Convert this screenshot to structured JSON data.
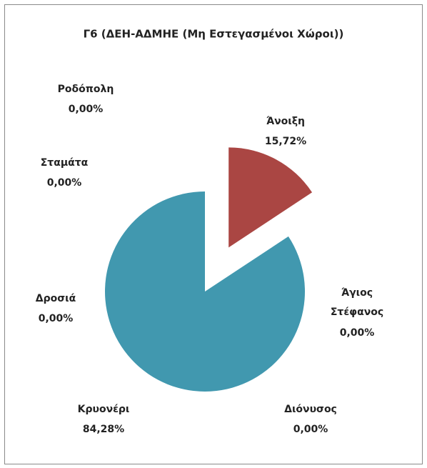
{
  "chart_data": {
    "type": "pie",
    "title": "Γ6 (ΔΕΗ-ΑΔΜΗΕ (Μη Εστεγασμένοι Χώροι))",
    "categories": [
      "Ροδόπολη",
      "Άνοιξη",
      "Άγιος Στέφανος",
      "Διόνυσος",
      "Κρυονέρι",
      "Δροσιά",
      "Σταμάτα"
    ],
    "values": [
      0,
      15.72,
      0,
      0,
      84.28,
      0,
      0
    ],
    "value_labels": [
      "0,00%",
      "15,72%",
      "0,00%",
      "0,00%",
      "84,28%",
      "0,00%",
      "0,00%"
    ],
    "colors": [
      "#4572a7",
      "#aa4643",
      "#89a54e",
      "#71588f",
      "#4198af",
      "#db843d",
      "#93a9cf"
    ]
  }
}
